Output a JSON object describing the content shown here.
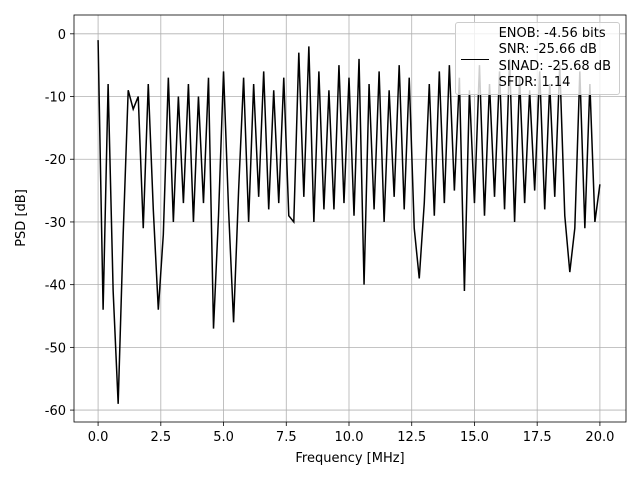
{
  "chart_data": {
    "type": "line",
    "xlabel": "Frequency [MHz]",
    "ylabel": "PSD [dB]",
    "x": [
      0,
      0.2,
      0.4,
      0.6,
      0.8,
      1,
      1.2,
      1.4,
      1.6,
      1.8,
      2,
      2.2,
      2.4,
      2.6,
      2.8,
      3,
      3.2,
      3.4,
      3.6,
      3.8,
      4,
      4.2,
      4.4,
      4.6,
      4.8,
      5,
      5.2,
      5.4,
      5.6,
      5.8,
      6,
      6.2,
      6.4,
      6.6,
      6.8,
      7,
      7.2,
      7.4,
      7.6,
      7.8,
      8,
      8.2,
      8.4,
      8.6,
      8.8,
      9,
      9.2,
      9.4,
      9.6,
      9.8,
      10,
      10.2,
      10.4,
      10.6,
      10.8,
      11,
      11.2,
      11.4,
      11.6,
      11.8,
      12,
      12.2,
      12.4,
      12.6,
      12.8,
      13,
      13.2,
      13.4,
      13.6,
      13.8,
      14,
      14.2,
      14.4,
      14.6,
      14.8,
      15,
      15.2,
      15.4,
      15.6,
      15.8,
      16,
      16.2,
      16.4,
      16.6,
      16.8,
      17,
      17.2,
      17.4,
      17.6,
      17.8,
      18,
      18.2,
      18.4,
      18.6,
      18.8,
      19,
      19.2,
      19.4,
      19.6,
      19.8,
      20
    ],
    "series": [
      {
        "name": "ENOB: -4.56 bits\nSNR: -25.66 dB\nSINAD: -25.68 dB\nSFDR: 1.14",
        "color": "#000000",
        "values": [
          -1,
          -44,
          -8,
          -41,
          -59,
          -32,
          -9,
          -12,
          -10,
          -31,
          -8,
          -28,
          -44,
          -32,
          -7,
          -30,
          -10,
          -27,
          -8,
          -30,
          -10,
          -27,
          -7,
          -47,
          -29,
          -6,
          -28,
          -46,
          -25,
          -7,
          -30,
          -8,
          -26,
          -6,
          -28,
          -9,
          -27,
          -7,
          -29,
          -30,
          -3,
          -26,
          -2,
          -30,
          -6,
          -28,
          -9,
          -28,
          -5,
          -27,
          -7,
          -29,
          -4,
          -40,
          -8,
          -28,
          -6,
          -30,
          -9,
          -26,
          -5,
          -28,
          -7,
          -31,
          -39,
          -27,
          -8,
          -29,
          -6,
          -27,
          -5,
          -25,
          -7,
          -41,
          -9,
          -27,
          -5,
          -29,
          -8,
          -26,
          -6,
          -28,
          -4,
          -30,
          -7,
          -27,
          -9,
          -25,
          -6,
          -28,
          -8,
          -26,
          -5,
          -29,
          -38,
          -31,
          -6,
          -31,
          -8,
          -30,
          -24
        ]
      }
    ],
    "xlim": [
      -0.96,
      21.04
    ],
    "ylim": [
      -61.9,
      3.0
    ],
    "xticks": [
      {
        "value": 0,
        "label": "0.0"
      },
      2.5,
      {
        "value": 5,
        "label": "5.0"
      },
      7.5,
      {
        "value": 10,
        "label": "10.0"
      },
      12.5,
      {
        "value": 15,
        "label": "15.0"
      },
      17.5,
      {
        "value": 20,
        "label": "20.0"
      }
    ],
    "yticks": [
      0,
      -10,
      -20,
      -30,
      -40,
      -50,
      -60
    ],
    "grid": true,
    "legend": "upper right"
  }
}
